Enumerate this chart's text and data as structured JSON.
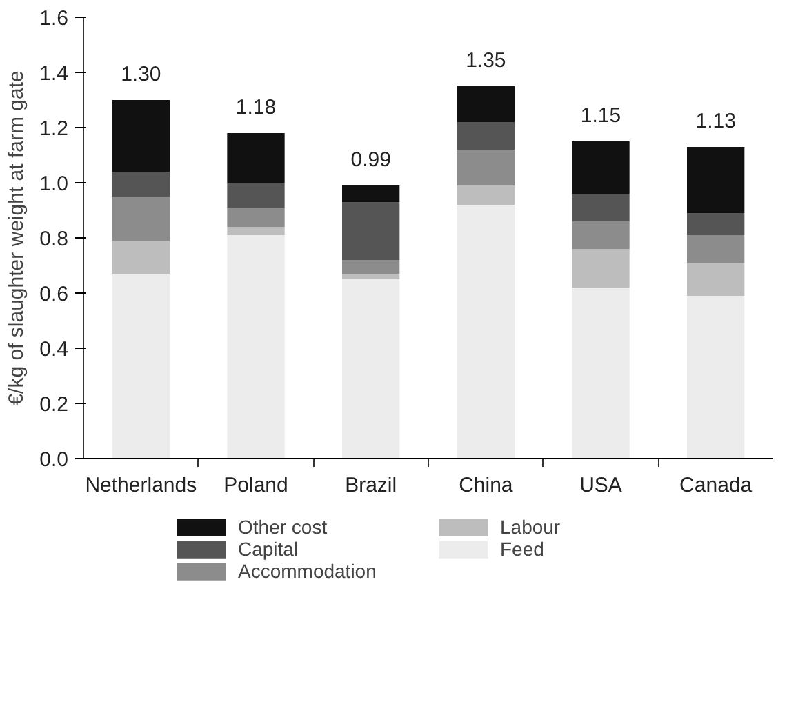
{
  "chart_data": {
    "type": "bar",
    "stacked": true,
    "ylabel": "€/kg of slaughter weight at farm gate",
    "categories": [
      "Netherlands",
      "Poland",
      "Brazil",
      "China",
      "USA",
      "Canada"
    ],
    "series": [
      {
        "name": "Feed",
        "color": "#ececec",
        "values": [
          0.67,
          0.81,
          0.65,
          0.92,
          0.62,
          0.59
        ]
      },
      {
        "name": "Labour",
        "color": "#bdbdbd",
        "values": [
          0.12,
          0.03,
          0.02,
          0.07,
          0.14,
          0.12
        ]
      },
      {
        "name": "Accommodation",
        "color": "#8c8c8c",
        "values": [
          0.16,
          0.07,
          0.05,
          0.13,
          0.1,
          0.1
        ]
      },
      {
        "name": "Capital",
        "color": "#555555",
        "values": [
          0.09,
          0.09,
          0.21,
          0.1,
          0.1,
          0.08
        ]
      },
      {
        "name": "Other cost",
        "color": "#111111",
        "values": [
          0.26,
          0.18,
          0.06,
          0.13,
          0.19,
          0.24
        ]
      }
    ],
    "totals": [
      "1.30",
      "1.18",
      "0.99",
      "1.35",
      "1.15",
      "1.13"
    ],
    "ylim": [
      0,
      1.6
    ],
    "yticks": [
      {
        "value": 0,
        "label": "0.0"
      },
      0.2,
      0.4,
      0.6,
      0.8,
      {
        "value": 1,
        "label": "1.0"
      },
      1.2,
      1.4,
      1.6
    ],
    "grid": false,
    "legend": "bottom"
  }
}
